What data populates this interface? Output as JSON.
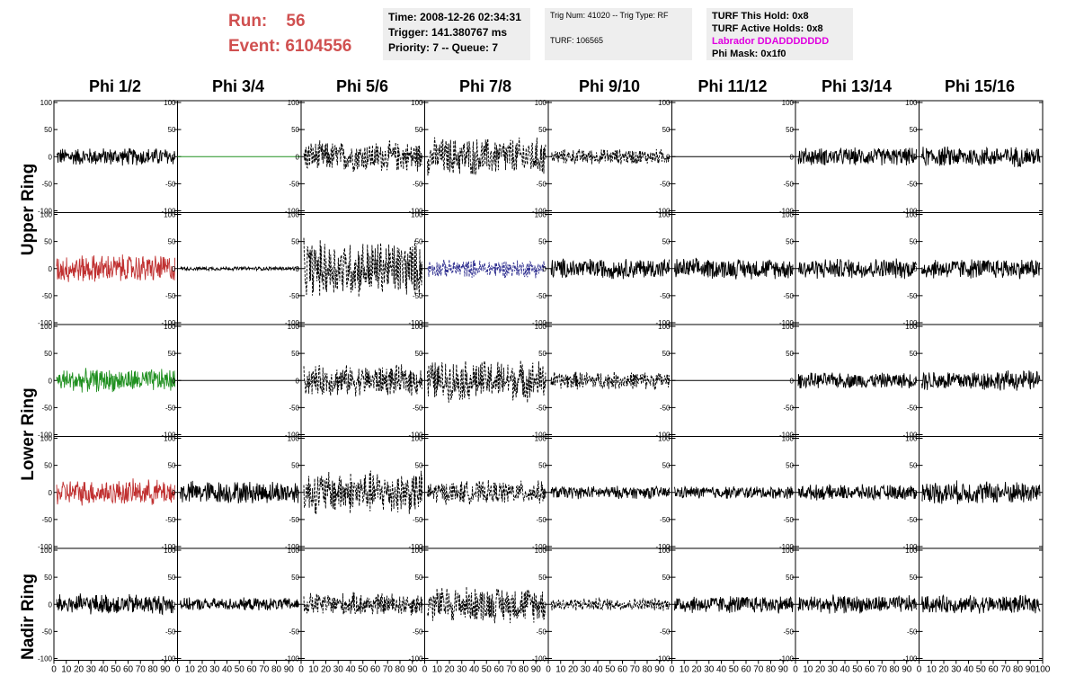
{
  "header": {
    "run_label": "Run:",
    "run_value": "56",
    "event_label": "Event:",
    "event_value": "6104556",
    "time": "Time: 2008-12-26 02:34:31",
    "trigger": "Trigger: 141.380767 ms",
    "priority": "Priority: 7 -- Queue: 7",
    "trig_num": "Trig Num: 41020 -- Trig Type: RF",
    "turf": "TURF: 106565",
    "turf_this_hold": "TURF This Hold: 0x8",
    "turf_active_holds": "TURF Active Holds: 0x8",
    "labrador": "Labrador DDADDDDDDD",
    "phi_mask": "Phi Mask: 0x1f0"
  },
  "columns": [
    "Phi 1/2",
    "Phi 3/4",
    "Phi 5/6",
    "Phi 7/8",
    "Phi 9/10",
    "Phi 11/12",
    "Phi 13/14",
    "Phi 15/16"
  ],
  "rings": [
    "Upper Ring",
    "Lower Ring",
    "Nadir Ring"
  ],
  "axes": {
    "y_ticks": [
      "100",
      "50",
      "0",
      "-50",
      "-100"
    ],
    "x_ticks": [
      "0",
      "10",
      "20",
      "30",
      "40",
      "50",
      "60",
      "70",
      "80",
      "90",
      "100"
    ]
  },
  "colors": {
    "run_text": "#d05050",
    "labrador_text": "#e000e0",
    "trace_red": "#c03030",
    "trace_green": "#209020",
    "trace_blue": "#303090",
    "trace_black": "#000000"
  },
  "panels": [
    [
      {
        "style": "solid",
        "color": "black",
        "amp": 14
      },
      {
        "style": "flat",
        "color": "green",
        "amp": 0
      },
      {
        "style": "dashed",
        "color": "black",
        "amp": 24
      },
      {
        "style": "dashed",
        "color": "black",
        "amp": 30
      },
      {
        "style": "dashed",
        "color": "black",
        "amp": 12
      },
      {
        "style": "flat",
        "color": "black",
        "amp": 0
      },
      {
        "style": "solid",
        "color": "black",
        "amp": 14
      },
      {
        "style": "solid",
        "color": "black",
        "amp": 16
      }
    ],
    [
      {
        "style": "solid",
        "color": "red",
        "amp": 22
      },
      {
        "style": "solid",
        "color": "black",
        "amp": 3
      },
      {
        "style": "dashed",
        "color": "black",
        "amp": 45
      },
      {
        "style": "dashed",
        "color": "blue",
        "amp": 14
      },
      {
        "style": "solid",
        "color": "black",
        "amp": 16
      },
      {
        "style": "solid",
        "color": "black",
        "amp": 16
      },
      {
        "style": "solid",
        "color": "black",
        "amp": 16
      },
      {
        "style": "solid",
        "color": "black",
        "amp": 16
      }
    ],
    [
      {
        "style": "solid",
        "color": "green",
        "amp": 18
      },
      {
        "style": "flat",
        "color": "black",
        "amp": 0
      },
      {
        "style": "dashed",
        "color": "black",
        "amp": 24
      },
      {
        "style": "dashed",
        "color": "black",
        "amp": 32
      },
      {
        "style": "dashed",
        "color": "black",
        "amp": 14
      },
      {
        "style": "flat",
        "color": "black",
        "amp": 0
      },
      {
        "style": "solid",
        "color": "black",
        "amp": 12
      },
      {
        "style": "solid",
        "color": "black",
        "amp": 16
      }
    ],
    [
      {
        "style": "solid",
        "color": "red",
        "amp": 20
      },
      {
        "style": "solid",
        "color": "black",
        "amp": 18
      },
      {
        "style": "dashed",
        "color": "black",
        "amp": 34
      },
      {
        "style": "dashed",
        "color": "black",
        "amp": 18
      },
      {
        "style": "solid",
        "color": "black",
        "amp": 10
      },
      {
        "style": "solid",
        "color": "black",
        "amp": 10
      },
      {
        "style": "solid",
        "color": "black",
        "amp": 12
      },
      {
        "style": "solid",
        "color": "black",
        "amp": 18
      }
    ],
    [
      {
        "style": "solid",
        "color": "black",
        "amp": 16
      },
      {
        "style": "solid",
        "color": "black",
        "amp": 10
      },
      {
        "style": "dashed",
        "color": "black",
        "amp": 18
      },
      {
        "style": "dashed",
        "color": "black",
        "amp": 28
      },
      {
        "style": "dashed",
        "color": "black",
        "amp": 10
      },
      {
        "style": "solid",
        "color": "black",
        "amp": 14
      },
      {
        "style": "solid",
        "color": "black",
        "amp": 14
      },
      {
        "style": "solid",
        "color": "black",
        "amp": 14
      }
    ]
  ]
}
